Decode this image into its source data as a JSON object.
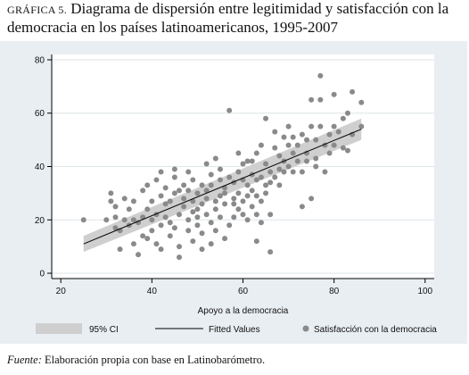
{
  "title": {
    "prefix": "GRÁFICA 5.",
    "text": "Diagrama de dispersión entre legitimidad y satisfacción con la democracia en los países latinoamericanos, 1995-2007"
  },
  "source": {
    "label": "Fuente:",
    "text": "Elaboración propia con base en Latinobarómetro."
  },
  "colors": {
    "panel_bg": "#e9eef2",
    "plot_bg": "#ffffff",
    "points": "#8a8a8a",
    "ci_band": "#cfcfcf",
    "fit_line": "#000000"
  },
  "chart_data": {
    "type": "scatter",
    "xlabel": "Apoyo a la democracia",
    "ylabel": "",
    "xlim": [
      18,
      102
    ],
    "ylim": [
      -2,
      82
    ],
    "xticks": [
      20,
      40,
      60,
      80,
      100
    ],
    "yticks": [
      0,
      20,
      40,
      60,
      80
    ],
    "grid": true,
    "legend_position": "bottom",
    "legend": [
      "95% CI",
      "Fitted Values",
      "Satisfacción con la democracia"
    ],
    "fitted_line": {
      "x": [
        25,
        86
      ],
      "y": [
        11,
        54
      ]
    },
    "ci_band": {
      "x": [
        25,
        86
      ],
      "lower": [
        8,
        50
      ],
      "upper": [
        14,
        58
      ]
    },
    "points": [
      [
        25,
        20
      ],
      [
        30,
        20
      ],
      [
        31,
        30
      ],
      [
        31,
        27
      ],
      [
        32,
        25
      ],
      [
        32,
        21
      ],
      [
        32,
        17
      ],
      [
        33,
        16
      ],
      [
        33,
        9
      ],
      [
        34,
        20
      ],
      [
        34,
        28
      ],
      [
        35,
        24
      ],
      [
        35,
        18
      ],
      [
        36,
        11
      ],
      [
        36,
        20
      ],
      [
        36,
        27
      ],
      [
        37,
        7
      ],
      [
        37,
        19
      ],
      [
        38,
        21
      ],
      [
        38,
        14
      ],
      [
        38,
        31
      ],
      [
        39,
        33
      ],
      [
        39,
        13
      ],
      [
        39,
        24
      ],
      [
        40,
        16
      ],
      [
        40,
        20
      ],
      [
        40,
        27
      ],
      [
        41,
        35
      ],
      [
        41,
        22
      ],
      [
        41,
        11
      ],
      [
        42,
        29
      ],
      [
        42,
        18
      ],
      [
        42,
        38
      ],
      [
        42,
        9
      ],
      [
        43,
        26
      ],
      [
        43,
        21
      ],
      [
        43,
        32
      ],
      [
        44,
        14
      ],
      [
        44,
        19
      ],
      [
        44,
        27
      ],
      [
        45,
        36
      ],
      [
        45,
        30
      ],
      [
        45,
        39
      ],
      [
        45,
        17
      ],
      [
        46,
        6
      ],
      [
        46,
        22
      ],
      [
        46,
        31
      ],
      [
        46,
        10
      ],
      [
        47,
        33
      ],
      [
        47,
        25
      ],
      [
        47,
        28
      ],
      [
        48,
        20
      ],
      [
        48,
        16
      ],
      [
        48,
        38
      ],
      [
        48,
        31
      ],
      [
        49,
        23
      ],
      [
        49,
        27
      ],
      [
        49,
        35
      ],
      [
        49,
        12
      ],
      [
        50,
        30
      ],
      [
        50,
        18
      ],
      [
        50,
        21
      ],
      [
        50,
        24
      ],
      [
        51,
        33
      ],
      [
        51,
        26
      ],
      [
        51,
        15
      ],
      [
        51,
        9
      ],
      [
        52,
        41
      ],
      [
        52,
        28
      ],
      [
        52,
        22
      ],
      [
        52,
        31
      ],
      [
        53,
        37
      ],
      [
        53,
        11
      ],
      [
        53,
        19
      ],
      [
        53,
        33
      ],
      [
        54,
        27
      ],
      [
        54,
        43
      ],
      [
        54,
        24
      ],
      [
        54,
        16
      ],
      [
        55,
        29
      ],
      [
        55,
        21
      ],
      [
        55,
        39
      ],
      [
        55,
        35
      ],
      [
        56,
        32
      ],
      [
        56,
        26
      ],
      [
        56,
        30
      ],
      [
        56,
        13
      ],
      [
        57,
        61
      ],
      [
        57,
        36
      ],
      [
        57,
        18
      ],
      [
        58,
        28
      ],
      [
        58,
        21
      ],
      [
        58,
        34
      ],
      [
        58,
        26
      ],
      [
        59,
        45
      ],
      [
        59,
        38
      ],
      [
        59,
        30
      ],
      [
        59,
        24
      ],
      [
        60,
        22
      ],
      [
        60,
        35
      ],
      [
        60,
        41
      ],
      [
        60,
        27
      ],
      [
        61,
        20
      ],
      [
        61,
        33
      ],
      [
        61,
        29
      ],
      [
        61,
        42
      ],
      [
        62,
        37
      ],
      [
        62,
        25
      ],
      [
        62,
        31
      ],
      [
        62,
        42
      ],
      [
        63,
        12
      ],
      [
        63,
        22
      ],
      [
        63,
        29
      ],
      [
        63,
        35
      ],
      [
        63,
        45
      ],
      [
        64,
        48
      ],
      [
        64,
        36
      ],
      [
        64,
        27
      ],
      [
        64,
        19
      ],
      [
        65,
        58
      ],
      [
        65,
        33
      ],
      [
        65,
        41
      ],
      [
        65,
        30
      ],
      [
        66,
        22
      ],
      [
        66,
        8
      ],
      [
        66,
        38
      ],
      [
        66,
        34
      ],
      [
        67,
        47
      ],
      [
        67,
        36
      ],
      [
        67,
        53
      ],
      [
        68,
        39
      ],
      [
        68,
        44
      ],
      [
        68,
        33
      ],
      [
        69,
        51
      ],
      [
        69,
        42
      ],
      [
        69,
        38
      ],
      [
        70,
        48
      ],
      [
        70,
        40
      ],
      [
        70,
        55
      ],
      [
        71,
        45
      ],
      [
        71,
        38
      ],
      [
        71,
        51
      ],
      [
        72,
        42
      ],
      [
        72,
        48
      ],
      [
        73,
        52
      ],
      [
        73,
        38
      ],
      [
        73,
        25
      ],
      [
        74,
        45
      ],
      [
        74,
        50
      ],
      [
        74,
        42
      ],
      [
        75,
        65
      ],
      [
        75,
        55
      ],
      [
        75,
        28
      ],
      [
        76,
        43
      ],
      [
        76,
        50
      ],
      [
        76,
        40
      ],
      [
        77,
        74
      ],
      [
        77,
        65
      ],
      [
        77,
        55
      ],
      [
        78,
        48
      ],
      [
        78,
        38
      ],
      [
        79,
        52
      ],
      [
        79,
        45
      ],
      [
        80,
        55
      ],
      [
        80,
        67
      ],
      [
        80,
        48
      ],
      [
        81,
        53
      ],
      [
        82,
        47
      ],
      [
        82,
        58
      ],
      [
        83,
        60
      ],
      [
        83,
        46
      ],
      [
        84,
        68
      ],
      [
        84,
        52
      ],
      [
        86,
        64
      ],
      [
        86,
        55
      ]
    ]
  }
}
